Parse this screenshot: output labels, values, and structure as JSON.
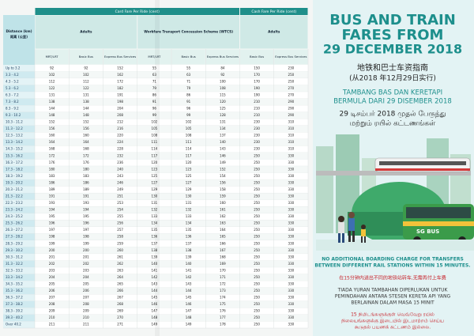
{
  "table": {
    "groups": [
      "Card Fare Per Ride (cent)",
      "Cash Fare Per Ride (cent)"
    ],
    "distance_header": [
      "Distance (km)",
      "距离 (公里)"
    ],
    "categories": [
      "Adults",
      "Workfare Transport Concession Scheme (WTCS)",
      "Adults"
    ],
    "columns": [
      "MRT/LRT",
      "Basic Bus",
      "Express Bus Services",
      "MRT/LRT",
      "Basic Bus",
      "Express Bus Services",
      "Basic Bus",
      "Express Bus Services"
    ],
    "rows": [
      [
        "Up to 3.2",
        92,
        92,
        152,
        55,
        55,
        84,
        150,
        230
      ],
      [
        "3.3 - 4.2",
        102,
        102,
        162,
        63,
        63,
        92,
        170,
        250
      ],
      [
        "4.3 - 5.2",
        112,
        112,
        172,
        71,
        71,
        100,
        170,
        250
      ],
      [
        "5.3 - 6.2",
        122,
        122,
        182,
        79,
        79,
        108,
        190,
        270
      ],
      [
        "6.3 - 7.2",
        131,
        131,
        191,
        86,
        86,
        115,
        190,
        270
      ],
      [
        "7.3 - 8.2",
        138,
        138,
        198,
        91,
        91,
        120,
        210,
        290
      ],
      [
        "8.3 - 9.2",
        144,
        144,
        204,
        96,
        96,
        125,
        210,
        290
      ],
      [
        "9.3 - 10.2",
        148,
        148,
        208,
        99,
        99,
        128,
        210,
        290
      ],
      [
        "10.3 - 11.2",
        152,
        152,
        212,
        102,
        102,
        131,
        230,
        310
      ],
      [
        "11.3 - 12.2",
        156,
        156,
        216,
        105,
        105,
        134,
        230,
        310
      ],
      [
        "12.3 - 13.2",
        160,
        160,
        220,
        108,
        108,
        137,
        230,
        310
      ],
      [
        "13.3 - 14.2",
        164,
        164,
        224,
        111,
        111,
        140,
        230,
        310
      ],
      [
        "14.3 - 15.2",
        168,
        168,
        228,
        114,
        114,
        143,
        230,
        310
      ],
      [
        "15.3 - 16.2",
        172,
        172,
        232,
        117,
        117,
        146,
        250,
        330
      ],
      [
        "16.3 - 17.2",
        176,
        176,
        236,
        120,
        120,
        149,
        250,
        330
      ],
      [
        "17.3 - 18.2",
        180,
        180,
        240,
        123,
        123,
        152,
        250,
        330
      ],
      [
        "18.3 - 19.2",
        183,
        183,
        243,
        125,
        125,
        154,
        250,
        330
      ],
      [
        "19.3 - 20.2",
        186,
        186,
        246,
        127,
        127,
        156,
        250,
        330
      ],
      [
        "20.3 - 21.2",
        189,
        189,
        249,
        129,
        129,
        158,
        250,
        330
      ],
      [
        "21.3 - 22.2",
        191,
        191,
        251,
        130,
        130,
        159,
        250,
        330
      ],
      [
        "22.3 - 23.2",
        193,
        193,
        253,
        131,
        131,
        160,
        250,
        330
      ],
      [
        "23.3 - 24.2",
        194,
        194,
        254,
        132,
        132,
        161,
        250,
        330
      ],
      [
        "24.3 - 25.2",
        195,
        195,
        255,
        133,
        133,
        162,
        250,
        330
      ],
      [
        "25.3 - 26.2",
        196,
        196,
        256,
        134,
        134,
        163,
        250,
        330
      ],
      [
        "26.3 - 27.2",
        197,
        197,
        257,
        135,
        135,
        164,
        250,
        330
      ],
      [
        "27.3 - 28.2",
        198,
        198,
        258,
        136,
        136,
        165,
        250,
        330
      ],
      [
        "28.3 - 29.2",
        199,
        199,
        259,
        137,
        137,
        166,
        250,
        330
      ],
      [
        "29.3 - 30.2",
        200,
        200,
        260,
        138,
        138,
        167,
        250,
        330
      ],
      [
        "30.3 - 31.2",
        201,
        201,
        261,
        139,
        139,
        168,
        250,
        330
      ],
      [
        "31.3 - 32.2",
        202,
        202,
        262,
        140,
        140,
        169,
        250,
        330
      ],
      [
        "32.3 - 33.2",
        203,
        203,
        263,
        141,
        141,
        170,
        250,
        330
      ],
      [
        "33.3 - 34.2",
        204,
        204,
        264,
        142,
        142,
        171,
        250,
        330
      ],
      [
        "34.3 - 35.2",
        205,
        205,
        265,
        143,
        143,
        172,
        250,
        330
      ],
      [
        "35.3 - 36.2",
        206,
        206,
        266,
        144,
        144,
        173,
        250,
        330
      ],
      [
        "36.3 - 37.2",
        207,
        207,
        267,
        145,
        145,
        174,
        250,
        330
      ],
      [
        "37.3 - 38.2",
        208,
        208,
        268,
        146,
        146,
        175,
        250,
        330
      ],
      [
        "38.3 - 39.2",
        209,
        209,
        269,
        147,
        147,
        176,
        250,
        330
      ],
      [
        "39.3 - 40.2",
        210,
        210,
        270,
        148,
        148,
        177,
        250,
        330
      ],
      [
        "Over 40.2",
        211,
        211,
        271,
        149,
        149,
        178,
        250,
        330
      ]
    ]
  },
  "panel": {
    "title": [
      "BUS AND TRAIN",
      "FARES FROM",
      "29 DECEMBER 2018"
    ],
    "chinese": [
      "地铁和巴士车资指南",
      "(从2018 年12月29日实行)"
    ],
    "malay": [
      "TAMBANG BAS DAN KERETAPI",
      "BERMULA DARI 29 DISEMBER 2018"
    ],
    "tamil": [
      "29 டிசம்பர் 2018 முதல் பேருந்து",
      "மற்றும் ரயில் கட்டணங்கள்"
    ],
    "bus_logo": "SG BUS",
    "note_en": [
      "NO ADDITIONAL BOARDING CHARGE FOR TRANSFERS",
      "BETWEEN DIFFERENT RAIL STATIONS WITHIN 15 MINUTES."
    ],
    "note_zh": "在15分钟内进出不同的地铁站转车,无需再付上车费",
    "note_ms": [
      "TIADA YURAN TAMBAHAN DIPERLUKAN UNTUK",
      "PEMINDAHAN ANTARA STESEN KERETA API YANG",
      "BERLAINAN DALAM MASA 15 MINIT"
    ],
    "note_ta": [
      "15 நிமிடங்களுக்குள் வெவ்வேறு ரயில்",
      "நிலையங்களுக்கு இடையில் இடமாற்றம் செய்ய",
      "கூடுதல் பயணக் கட்டணம் இல்லை."
    ]
  }
}
